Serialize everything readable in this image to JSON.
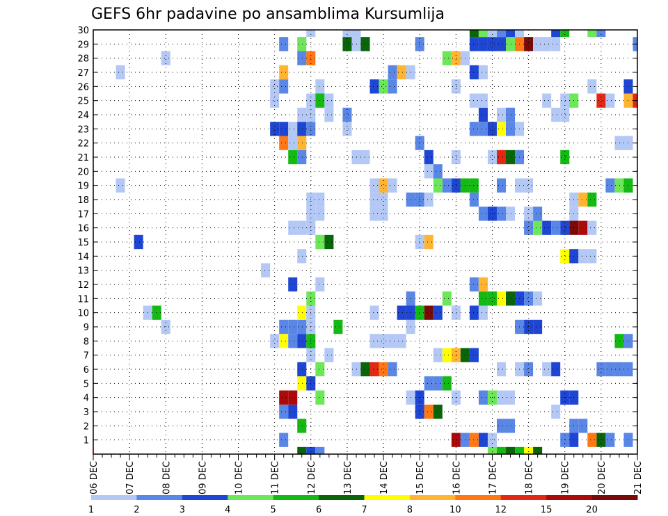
{
  "chart_data": {
    "type": "heatmap",
    "title": "GEFS 6hr padavine po ansamblima Kursumlija",
    "grid": true,
    "x_ticks": [
      "06 DEC",
      "07 DEC",
      "08 DEC",
      "09 DEC",
      "10 DEC",
      "11 DEC",
      "12 DEC",
      "13 DEC",
      "14 DEC",
      "15 DEC",
      "16 DEC",
      "17 DEC",
      "18 DEC",
      "19 DEC",
      "20 DEC",
      "21 DEC"
    ],
    "x_range": [
      0,
      60
    ],
    "y_ticks": [
      1,
      2,
      3,
      4,
      5,
      6,
      7,
      8,
      9,
      10,
      11,
      12,
      13,
      14,
      15,
      16,
      17,
      18,
      19,
      20,
      21,
      22,
      23,
      24,
      25,
      26,
      27,
      28,
      29,
      30
    ],
    "y_range": [
      0,
      30
    ],
    "colorbar": {
      "labels": [
        "1",
        "2",
        "3",
        "4",
        "5",
        "6",
        "7",
        "8",
        "10",
        "12",
        "15",
        "20"
      ],
      "colors": [
        "#b4c8f5",
        "#5a87e6",
        "#1e46d2",
        "#6ee65a",
        "#14b914",
        "#0a640a",
        "#ffff00",
        "#ffb432",
        "#ff7814",
        "#e12814",
        "#aa0a0a",
        "#780a0a"
      ]
    },
    "cells": [
      [
        23,
        0,
        5
      ],
      [
        24,
        0,
        2
      ],
      [
        25,
        0,
        1
      ],
      [
        44,
        0,
        3
      ],
      [
        45,
        0,
        4
      ],
      [
        46,
        0,
        5
      ],
      [
        47,
        0,
        4
      ],
      [
        48,
        0,
        6
      ],
      [
        49,
        0,
        5
      ],
      [
        21,
        1,
        1
      ],
      [
        40,
        1,
        10
      ],
      [
        41,
        1,
        1
      ],
      [
        42,
        1,
        8
      ],
      [
        43,
        1,
        2
      ],
      [
        44,
        1,
        0
      ],
      [
        52,
        1,
        1
      ],
      [
        53,
        1,
        2
      ],
      [
        55,
        1,
        8
      ],
      [
        56,
        1,
        5
      ],
      [
        57,
        1,
        1
      ],
      [
        59,
        1,
        1
      ],
      [
        23,
        2,
        4
      ],
      [
        45,
        2,
        1
      ],
      [
        46,
        2,
        1
      ],
      [
        53,
        2,
        1
      ],
      [
        54,
        2,
        1
      ],
      [
        21,
        3,
        1
      ],
      [
        22,
        3,
        2
      ],
      [
        36,
        3,
        2
      ],
      [
        37,
        3,
        8
      ],
      [
        38,
        3,
        5
      ],
      [
        51,
        3,
        0
      ],
      [
        21,
        4,
        10
      ],
      [
        22,
        4,
        10
      ],
      [
        25,
        4,
        3
      ],
      [
        35,
        4,
        0
      ],
      [
        36,
        4,
        2
      ],
      [
        40,
        4,
        0
      ],
      [
        43,
        4,
        1
      ],
      [
        44,
        4,
        3
      ],
      [
        45,
        4,
        0
      ],
      [
        46,
        4,
        0
      ],
      [
        52,
        4,
        2
      ],
      [
        53,
        4,
        2
      ],
      [
        23,
        5,
        6
      ],
      [
        24,
        5,
        2
      ],
      [
        37,
        5,
        1
      ],
      [
        38,
        5,
        1
      ],
      [
        39,
        5,
        4
      ],
      [
        23,
        6,
        2
      ],
      [
        25,
        6,
        3
      ],
      [
        29,
        6,
        0
      ],
      [
        30,
        6,
        5
      ],
      [
        31,
        6,
        9
      ],
      [
        32,
        6,
        8
      ],
      [
        33,
        6,
        1
      ],
      [
        45,
        6,
        0
      ],
      [
        47,
        6,
        0
      ],
      [
        48,
        6,
        1
      ],
      [
        50,
        6,
        0
      ],
      [
        51,
        6,
        2
      ],
      [
        56,
        6,
        1
      ],
      [
        57,
        6,
        1
      ],
      [
        58,
        6,
        1
      ],
      [
        59,
        6,
        1
      ],
      [
        24,
        7,
        0
      ],
      [
        26,
        7,
        0
      ],
      [
        38,
        7,
        0
      ],
      [
        39,
        7,
        6
      ],
      [
        40,
        7,
        7
      ],
      [
        41,
        7,
        5
      ],
      [
        42,
        7,
        2
      ],
      [
        20,
        8,
        0
      ],
      [
        21,
        8,
        6
      ],
      [
        22,
        8,
        1
      ],
      [
        23,
        8,
        2
      ],
      [
        24,
        8,
        4
      ],
      [
        31,
        8,
        0
      ],
      [
        32,
        8,
        0
      ],
      [
        33,
        8,
        0
      ],
      [
        34,
        8,
        0
      ],
      [
        58,
        8,
        4
      ],
      [
        59,
        8,
        1
      ],
      [
        8,
        9,
        0
      ],
      [
        21,
        9,
        1
      ],
      [
        22,
        9,
        1
      ],
      [
        23,
        9,
        1
      ],
      [
        24,
        9,
        0
      ],
      [
        27,
        9,
        4
      ],
      [
        35,
        9,
        0
      ],
      [
        47,
        9,
        1
      ],
      [
        48,
        9,
        2
      ],
      [
        49,
        9,
        2
      ],
      [
        6,
        10,
        0
      ],
      [
        7,
        10,
        4
      ],
      [
        23,
        10,
        6
      ],
      [
        24,
        10,
        0
      ],
      [
        31,
        10,
        0
      ],
      [
        34,
        10,
        2
      ],
      [
        35,
        10,
        2
      ],
      [
        36,
        10,
        4
      ],
      [
        37,
        10,
        11
      ],
      [
        38,
        10,
        2
      ],
      [
        40,
        10,
        0
      ],
      [
        42,
        10,
        2
      ],
      [
        43,
        10,
        0
      ],
      [
        24,
        11,
        3
      ],
      [
        35,
        11,
        1
      ],
      [
        39,
        11,
        3
      ],
      [
        43,
        11,
        4
      ],
      [
        44,
        11,
        4
      ],
      [
        45,
        11,
        6
      ],
      [
        46,
        11,
        5
      ],
      [
        47,
        11,
        2
      ],
      [
        48,
        11,
        1
      ],
      [
        49,
        11,
        0
      ],
      [
        22,
        12,
        2
      ],
      [
        25,
        12,
        0
      ],
      [
        42,
        12,
        1
      ],
      [
        43,
        12,
        7
      ],
      [
        19,
        13,
        0
      ],
      [
        23,
        14,
        0
      ],
      [
        52,
        14,
        6
      ],
      [
        53,
        14,
        2
      ],
      [
        54,
        14,
        0
      ],
      [
        55,
        14,
        0
      ],
      [
        5,
        15,
        2
      ],
      [
        25,
        15,
        3
      ],
      [
        26,
        15,
        5
      ],
      [
        36,
        15,
        0
      ],
      [
        37,
        15,
        7
      ],
      [
        22,
        16,
        0
      ],
      [
        23,
        16,
        0
      ],
      [
        24,
        16,
        0
      ],
      [
        48,
        16,
        1
      ],
      [
        49,
        16,
        3
      ],
      [
        50,
        16,
        2
      ],
      [
        51,
        16,
        1
      ],
      [
        52,
        16,
        2
      ],
      [
        53,
        16,
        11
      ],
      [
        54,
        16,
        10
      ],
      [
        55,
        16,
        0
      ],
      [
        24,
        17,
        0
      ],
      [
        25,
        17,
        0
      ],
      [
        31,
        17,
        0
      ],
      [
        32,
        17,
        0
      ],
      [
        43,
        17,
        1
      ],
      [
        44,
        17,
        2
      ],
      [
        45,
        17,
        1
      ],
      [
        46,
        17,
        0
      ],
      [
        48,
        17,
        0
      ],
      [
        49,
        17,
        1
      ],
      [
        53,
        17,
        0
      ],
      [
        24,
        18,
        0
      ],
      [
        25,
        18,
        0
      ],
      [
        31,
        18,
        0
      ],
      [
        32,
        18,
        0
      ],
      [
        35,
        18,
        1
      ],
      [
        36,
        18,
        1
      ],
      [
        37,
        18,
        0
      ],
      [
        42,
        18,
        1
      ],
      [
        53,
        18,
        0
      ],
      [
        54,
        18,
        7
      ],
      [
        55,
        18,
        4
      ],
      [
        3,
        19,
        0
      ],
      [
        31,
        19,
        0
      ],
      [
        32,
        19,
        7
      ],
      [
        33,
        19,
        0
      ],
      [
        38,
        19,
        3
      ],
      [
        39,
        19,
        1
      ],
      [
        40,
        19,
        2
      ],
      [
        41,
        19,
        4
      ],
      [
        42,
        19,
        4
      ],
      [
        45,
        19,
        1
      ],
      [
        47,
        19,
        0
      ],
      [
        48,
        19,
        0
      ],
      [
        57,
        19,
        1
      ],
      [
        58,
        19,
        3
      ],
      [
        59,
        19,
        4
      ],
      [
        37,
        20,
        0
      ],
      [
        38,
        20,
        1
      ],
      [
        22,
        21,
        4
      ],
      [
        23,
        21,
        1
      ],
      [
        29,
        21,
        0
      ],
      [
        30,
        21,
        0
      ],
      [
        37,
        21,
        2
      ],
      [
        40,
        21,
        0
      ],
      [
        44,
        21,
        0
      ],
      [
        45,
        21,
        9
      ],
      [
        46,
        21,
        5
      ],
      [
        47,
        21,
        1
      ],
      [
        52,
        21,
        4
      ],
      [
        21,
        22,
        8
      ],
      [
        22,
        22,
        0
      ],
      [
        23,
        22,
        7
      ],
      [
        36,
        22,
        1
      ],
      [
        58,
        22,
        0
      ],
      [
        59,
        22,
        0
      ],
      [
        20,
        23,
        2
      ],
      [
        21,
        23,
        2
      ],
      [
        22,
        23,
        0
      ],
      [
        23,
        23,
        2
      ],
      [
        24,
        23,
        1
      ],
      [
        28,
        23,
        0
      ],
      [
        42,
        23,
        1
      ],
      [
        43,
        23,
        1
      ],
      [
        44,
        23,
        2
      ],
      [
        45,
        23,
        6
      ],
      [
        46,
        23,
        1
      ],
      [
        47,
        23,
        0
      ],
      [
        23,
        24,
        0
      ],
      [
        24,
        24,
        0
      ],
      [
        26,
        24,
        0
      ],
      [
        28,
        24,
        1
      ],
      [
        43,
        24,
        2
      ],
      [
        45,
        24,
        0
      ],
      [
        46,
        24,
        1
      ],
      [
        51,
        24,
        0
      ],
      [
        52,
        24,
        0
      ],
      [
        20,
        25,
        0
      ],
      [
        24,
        25,
        0
      ],
      [
        25,
        25,
        4
      ],
      [
        26,
        25,
        0
      ],
      [
        42,
        25,
        0
      ],
      [
        43,
        25,
        0
      ],
      [
        50,
        25,
        0
      ],
      [
        52,
        25,
        0
      ],
      [
        53,
        25,
        3
      ],
      [
        56,
        25,
        9
      ],
      [
        57,
        25,
        0
      ],
      [
        59,
        25,
        7
      ],
      [
        60,
        25,
        9
      ],
      [
        20,
        26,
        0
      ],
      [
        21,
        26,
        1
      ],
      [
        25,
        26,
        0
      ],
      [
        31,
        26,
        2
      ],
      [
        32,
        26,
        3
      ],
      [
        33,
        26,
        1
      ],
      [
        40,
        26,
        0
      ],
      [
        55,
        26,
        0
      ],
      [
        59,
        26,
        2
      ],
      [
        3,
        27,
        0
      ],
      [
        21,
        27,
        7
      ],
      [
        33,
        27,
        1
      ],
      [
        34,
        27,
        7
      ],
      [
        35,
        27,
        0
      ],
      [
        42,
        27,
        2
      ],
      [
        43,
        27,
        0
      ],
      [
        8,
        28,
        0
      ],
      [
        23,
        28,
        1
      ],
      [
        24,
        28,
        8
      ],
      [
        39,
        28,
        3
      ],
      [
        40,
        28,
        7
      ],
      [
        41,
        28,
        0
      ],
      [
        21,
        29,
        1
      ],
      [
        23,
        29,
        3
      ],
      [
        28,
        29,
        5
      ],
      [
        29,
        29,
        0
      ],
      [
        30,
        29,
        5
      ],
      [
        36,
        29,
        1
      ],
      [
        42,
        29,
        2
      ],
      [
        43,
        29,
        2
      ],
      [
        44,
        29,
        2
      ],
      [
        45,
        29,
        2
      ],
      [
        46,
        29,
        3
      ],
      [
        47,
        29,
        8
      ],
      [
        48,
        29,
        11
      ],
      [
        49,
        29,
        0
      ],
      [
        50,
        29,
        0
      ],
      [
        51,
        29,
        0
      ],
      [
        60,
        29,
        1
      ],
      [
        24,
        30,
        0
      ],
      [
        28,
        30,
        0
      ],
      [
        29,
        30,
        0
      ],
      [
        42,
        30,
        5
      ],
      [
        43,
        30,
        3
      ],
      [
        44,
        30,
        0
      ],
      [
        45,
        30,
        1
      ],
      [
        46,
        30,
        2
      ],
      [
        47,
        30,
        0
      ],
      [
        51,
        30,
        2
      ],
      [
        52,
        30,
        4
      ],
      [
        55,
        30,
        3
      ],
      [
        56,
        30,
        1
      ]
    ]
  }
}
